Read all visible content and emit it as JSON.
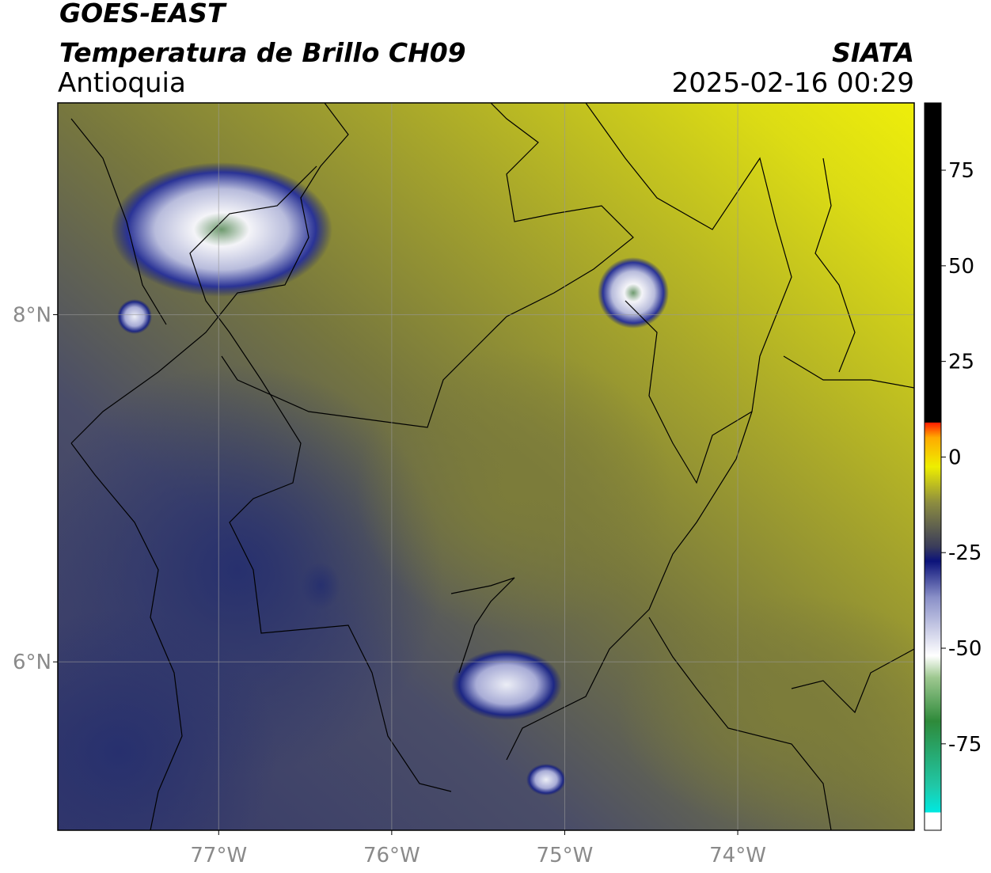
{
  "header": {
    "title": "GOES-EAST",
    "subtitle": "Temperatura de Brillo CH09",
    "region": "Antioquia",
    "source": "SIATA",
    "datetime": "2025-02-16 00:29"
  },
  "map": {
    "xlim": [
      -77.93,
      -72.98
    ],
    "ylim": [
      5.03,
      9.22
    ],
    "xticks": [
      {
        "value": -77,
        "label": "77°W"
      },
      {
        "value": -76,
        "label": "76°W"
      },
      {
        "value": -75,
        "label": "75°W"
      },
      {
        "value": -74,
        "label": "74°W"
      }
    ],
    "yticks": [
      {
        "value": 6,
        "label": "6°N"
      },
      {
        "value": 8,
        "label": "8°N"
      }
    ],
    "grid": true
  },
  "colorbar": {
    "lim": [
      -97.6,
      92.6
    ],
    "ticks": [
      -75,
      -50,
      -25,
      0,
      25,
      50,
      75
    ]
  }
}
